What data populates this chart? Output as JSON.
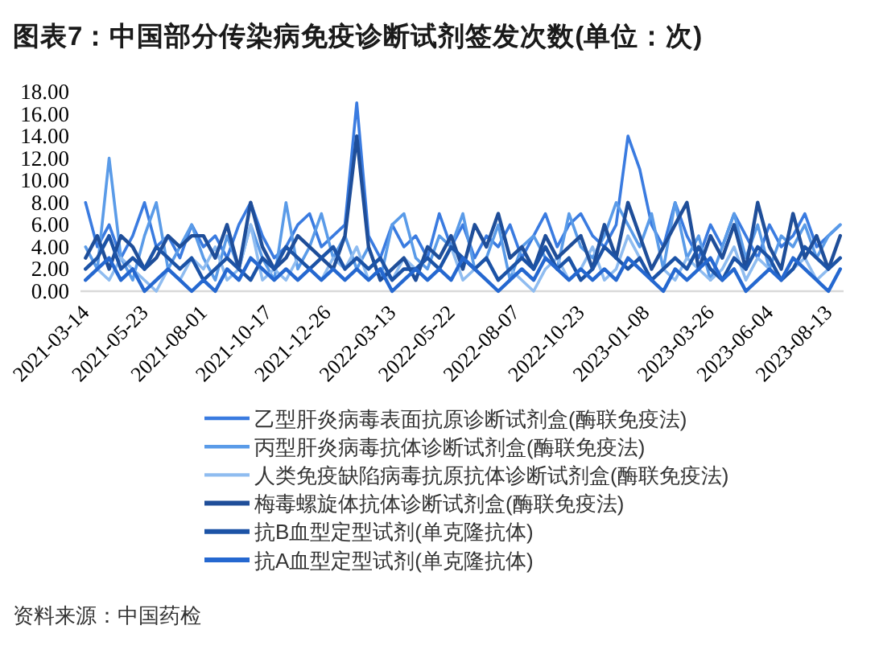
{
  "chart_data": {
    "type": "line",
    "title": "图表7：中国部分传染病免疫诊断试剂签发次数(单位：次)",
    "x": [
      "2021-03-14",
      "2021-03-28",
      "2021-04-11",
      "2021-04-25",
      "2021-05-09",
      "2021-05-23",
      "2021-06-06",
      "2021-06-20",
      "2021-07-04",
      "2021-07-18",
      "2021-08-01",
      "2021-08-15",
      "2021-08-29",
      "2021-09-12",
      "2021-09-26",
      "2021-10-10",
      "2021-10-24",
      "2021-11-07",
      "2021-11-21",
      "2021-12-05",
      "2021-12-19",
      "2022-01-02",
      "2022-01-16",
      "2022-01-30",
      "2022-02-13",
      "2022-02-27",
      "2022-03-13",
      "2022-03-27",
      "2022-04-10",
      "2022-04-24",
      "2022-05-08",
      "2022-05-22",
      "2022-06-05",
      "2022-06-19",
      "2022-07-03",
      "2022-07-17",
      "2022-07-31",
      "2022-08-14",
      "2022-08-28",
      "2022-09-11",
      "2022-09-25",
      "2022-10-09",
      "2022-10-23",
      "2022-11-06",
      "2022-11-20",
      "2022-12-04",
      "2022-12-18",
      "2023-01-01",
      "2023-01-15",
      "2023-01-29",
      "2023-02-12",
      "2023-02-26",
      "2023-03-12",
      "2023-03-26",
      "2023-04-09",
      "2023-04-23",
      "2023-05-07",
      "2023-05-21",
      "2023-06-04",
      "2023-06-18",
      "2023-07-02",
      "2023-07-16",
      "2023-07-30",
      "2023-08-13",
      "2023-08-27"
    ],
    "xlim": [
      "2021-03-08",
      "2023-08-31"
    ],
    "xticks": [
      "2021-03-14",
      "2021-05-23",
      "2021-08-01",
      "2021-10-17",
      "2021-12-26",
      "2022-03-13",
      "2022-05-22",
      "2022-08-07",
      "2022-10-23",
      "2023-01-08",
      "2023-03-26",
      "2023-06-04",
      "2023-08-13"
    ],
    "ylim": [
      0,
      18
    ],
    "yticks": [
      {
        "value": 0,
        "label": "0.00"
      },
      {
        "value": 2,
        "label": "2.00"
      },
      {
        "value": 4,
        "label": "4.00"
      },
      {
        "value": 6,
        "label": "6.00"
      },
      {
        "value": 8,
        "label": "8.00"
      },
      {
        "value": 10,
        "label": "10.00"
      },
      {
        "value": 12,
        "label": "12.00"
      },
      {
        "value": 14,
        "label": "14.00"
      },
      {
        "value": 16,
        "label": "16.00"
      },
      {
        "value": 18,
        "label": "18.00"
      }
    ],
    "legend": "bottom",
    "series": [
      {
        "name": "乙型肝炎病毒表面抗原诊断试剂盒(酶联免疫法)",
        "color": "#3a7be0",
        "values": [
          8,
          4,
          6,
          3,
          5,
          8,
          4,
          5,
          3,
          6,
          4,
          5,
          3,
          6,
          8,
          5,
          3,
          4,
          6,
          7,
          4,
          5,
          6,
          17,
          5,
          3,
          6,
          4,
          5,
          3,
          7,
          4,
          6,
          3,
          5,
          4,
          6,
          3,
          5,
          7,
          4,
          6,
          7,
          5,
          4,
          6,
          14,
          11,
          6,
          4,
          8,
          5,
          3,
          6,
          4,
          7,
          5,
          3,
          6,
          4,
          5,
          7,
          4,
          5,
          6
        ]
      },
      {
        "name": "丙型肝炎病毒抗体诊断试剂盒(酶联免疫法)",
        "color": "#5a9be8",
        "values": [
          4,
          2,
          12,
          3,
          1,
          5,
          8,
          2,
          4,
          6,
          3,
          1,
          5,
          2,
          6,
          3,
          1,
          8,
          2,
          4,
          7,
          3,
          5,
          2,
          4,
          1,
          6,
          7,
          3,
          2,
          5,
          4,
          7,
          2,
          3,
          6,
          1,
          4,
          5,
          3,
          2,
          7,
          4,
          3,
          5,
          8,
          6,
          4,
          7,
          2,
          8,
          3,
          5,
          1,
          4,
          7,
          3,
          6,
          2,
          5,
          4,
          6,
          3,
          5,
          6
        ]
      },
      {
        "name": "人类免疫缺陷病毒抗原抗体诊断试剂盒(酶联免疫法)",
        "color": "#8fbcf0",
        "values": [
          1,
          2,
          1,
          3,
          2,
          1,
          0,
          2,
          1,
          3,
          2,
          4,
          1,
          2,
          6,
          1,
          2,
          1,
          3,
          2,
          1,
          3,
          2,
          4,
          1,
          2,
          1,
          3,
          2,
          1,
          2,
          4,
          1,
          2,
          3,
          1,
          2,
          1,
          0,
          2,
          3,
          1,
          2,
          4,
          1,
          2,
          5,
          3,
          1,
          2,
          1,
          3,
          2,
          1,
          2,
          4,
          1,
          3,
          2,
          1,
          2,
          3,
          1,
          2,
          3
        ]
      },
      {
        "name": "梅毒螺旋体抗体诊断试剂盒(酶联免疫法)",
        "color": "#1f4e99",
        "values": [
          3,
          5,
          2,
          5,
          4,
          2,
          3,
          5,
          4,
          5,
          5,
          3,
          6,
          2,
          8,
          4,
          2,
          3,
          5,
          4,
          3,
          2,
          5,
          14,
          4,
          1,
          2,
          3,
          1,
          4,
          3,
          5,
          2,
          6,
          4,
          7,
          3,
          4,
          2,
          5,
          3,
          4,
          5,
          2,
          6,
          3,
          8,
          5,
          2,
          4,
          6,
          8,
          2,
          5,
          3,
          6,
          2,
          8,
          4,
          2,
          7,
          3,
          5,
          2,
          5
        ]
      },
      {
        "name": "抗B血型定型试剂(单克隆抗体)",
        "color": "#1c53a6",
        "values": [
          2,
          3,
          5,
          2,
          3,
          2,
          4,
          3,
          2,
          3,
          1,
          2,
          3,
          2,
          1,
          3,
          2,
          4,
          3,
          2,
          3,
          4,
          2,
          3,
          2,
          3,
          1,
          2,
          2,
          3,
          2,
          4,
          3,
          2,
          3,
          1,
          2,
          3,
          2,
          4,
          2,
          3,
          1,
          2,
          4,
          3,
          2,
          3,
          1,
          2,
          3,
          2,
          4,
          2,
          1,
          3,
          2,
          4,
          3,
          1,
          2,
          4,
          3,
          2,
          3
        ]
      },
      {
        "name": "抗A血型定型试剂(单克隆抗体)",
        "color": "#2568d0",
        "values": [
          1,
          2,
          3,
          1,
          2,
          0,
          1,
          2,
          1,
          0,
          1,
          0,
          2,
          1,
          3,
          2,
          1,
          2,
          1,
          2,
          1,
          2,
          1,
          2,
          1,
          2,
          0,
          1,
          2,
          1,
          2,
          1,
          3,
          2,
          1,
          0,
          1,
          2,
          1,
          3,
          2,
          1,
          2,
          1,
          2,
          1,
          3,
          2,
          1,
          0,
          2,
          1,
          2,
          3,
          1,
          2,
          0,
          1,
          2,
          1,
          3,
          2,
          1,
          0,
          2
        ]
      }
    ],
    "annotations": [
      "资料来源：中国药检"
    ]
  }
}
